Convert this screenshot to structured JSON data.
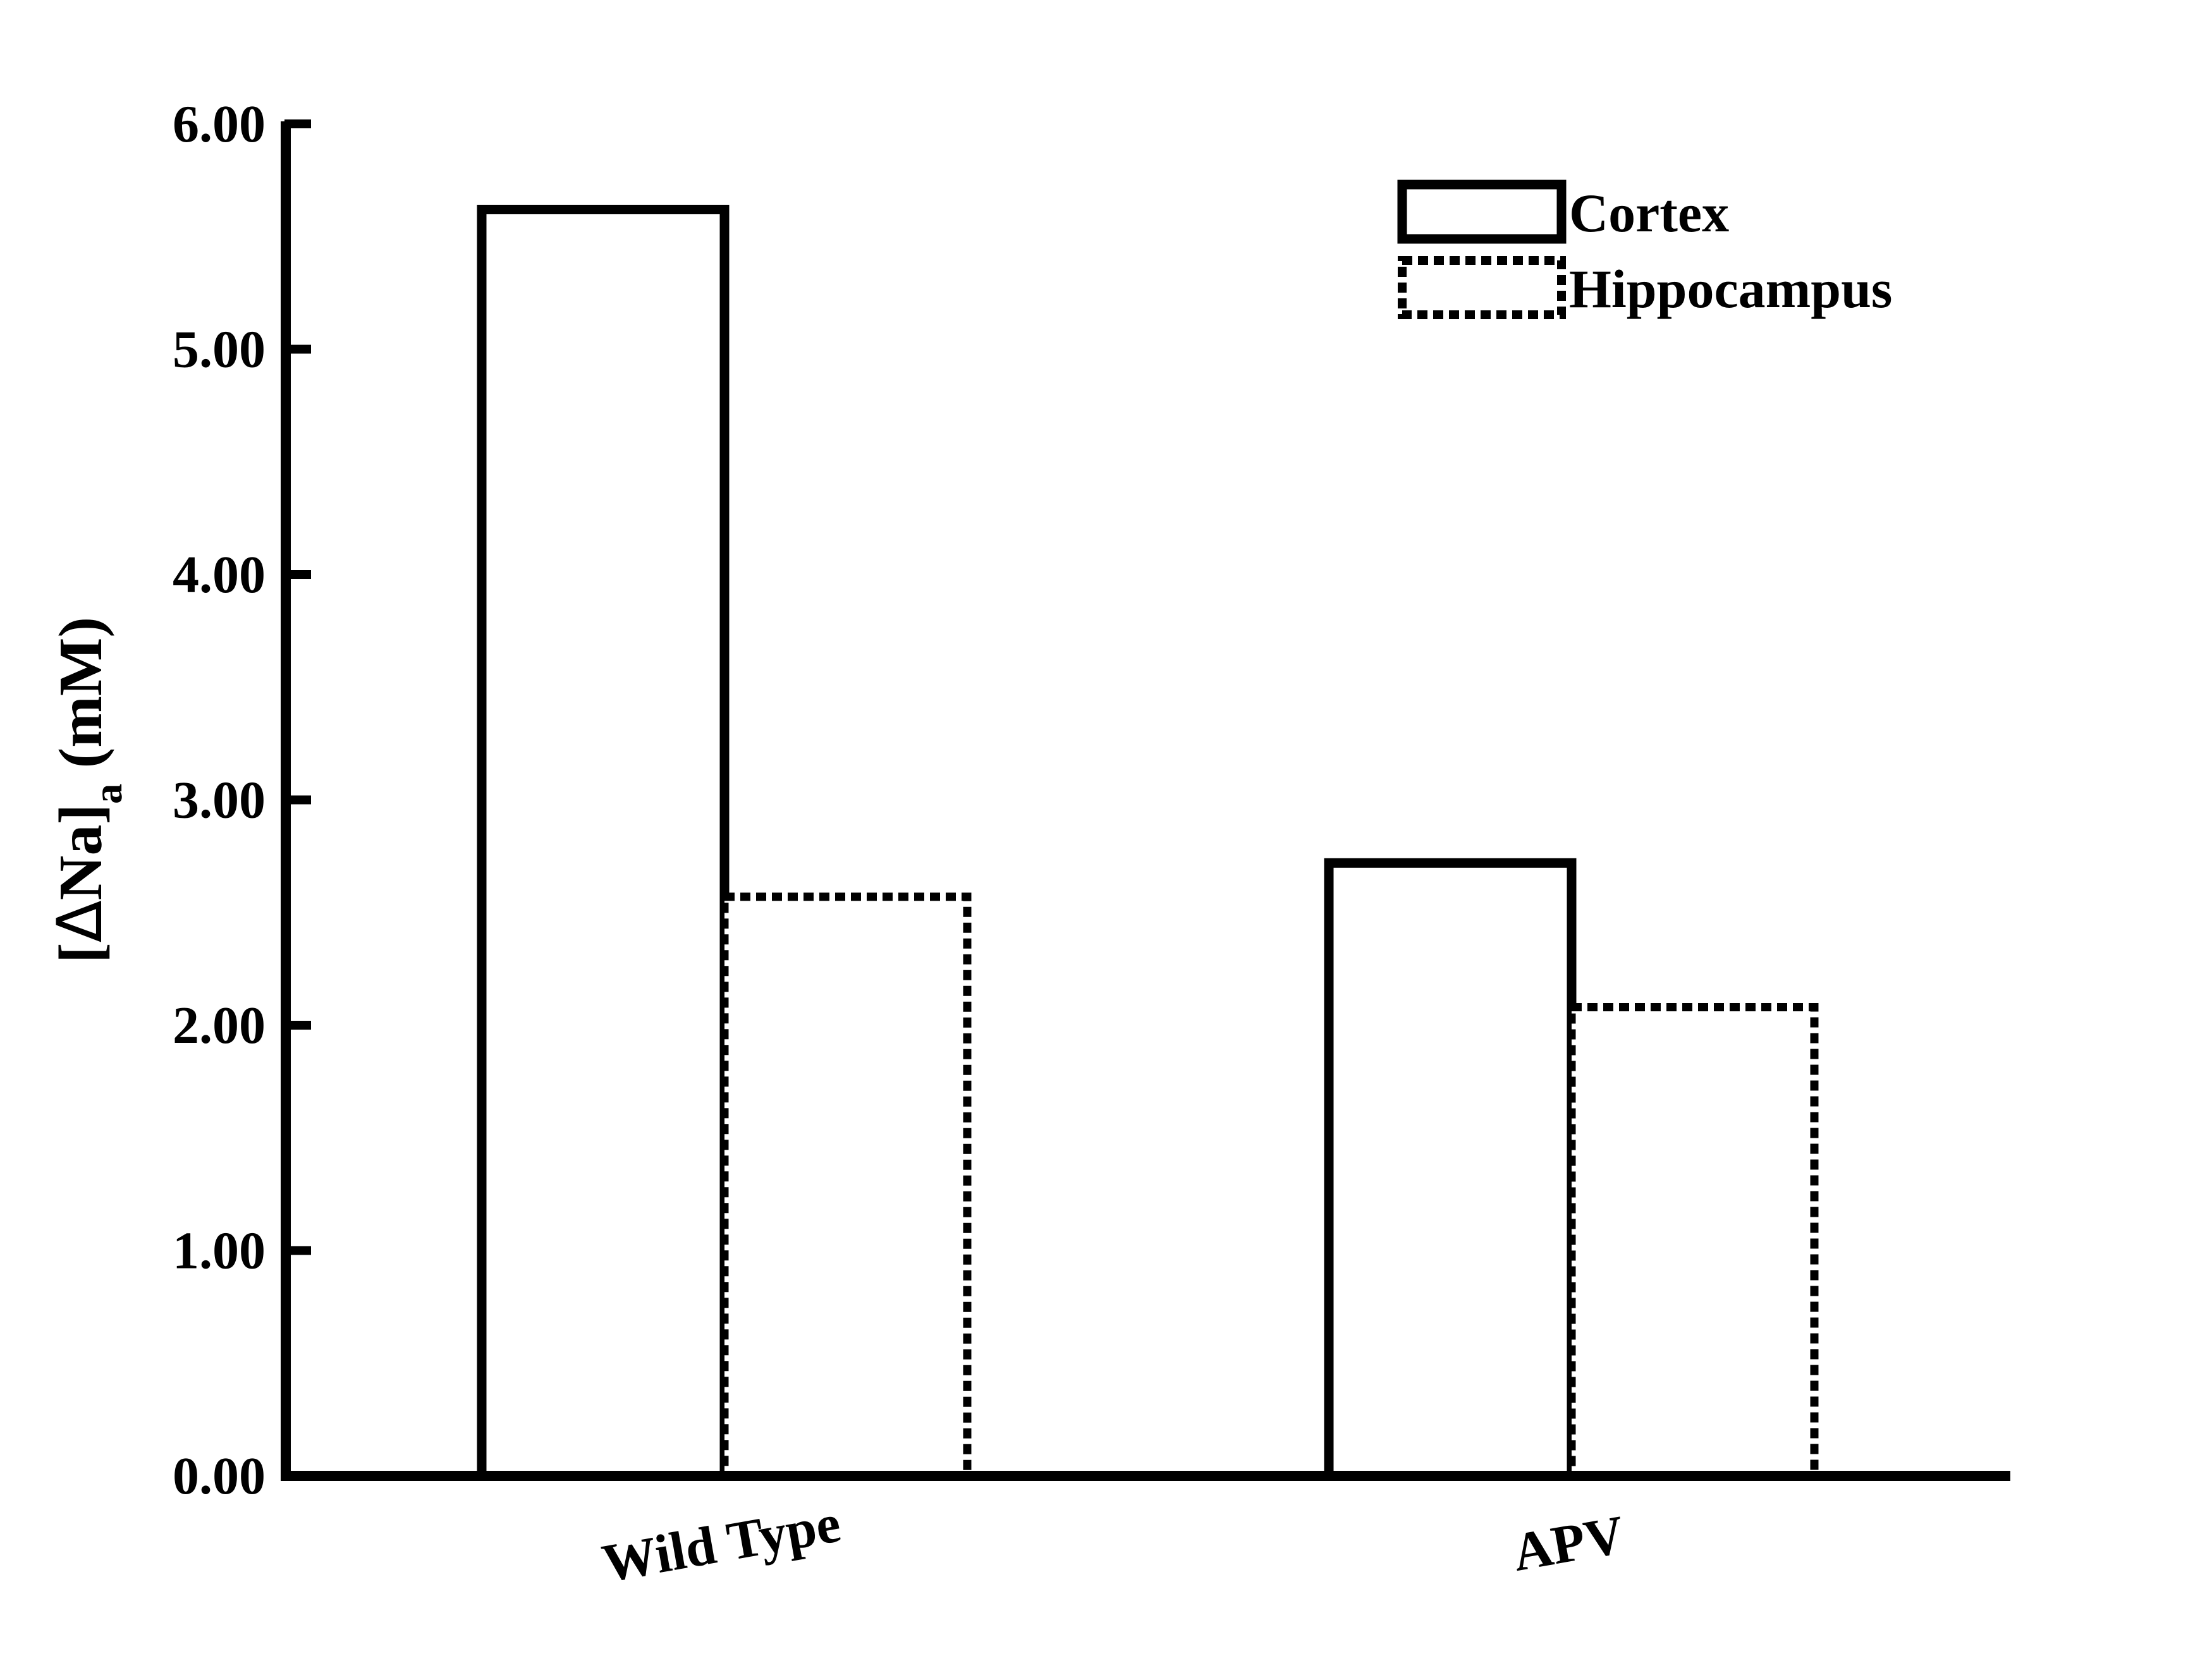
{
  "chart_data": {
    "type": "bar",
    "categories": [
      "Wild Type",
      "APV"
    ],
    "series": [
      {
        "name": "Cortex",
        "values": [
          5.62,
          2.72
        ],
        "style": "solid"
      },
      {
        "name": "Hippocampus",
        "values": [
          2.57,
          2.08
        ],
        "style": "dotted"
      }
    ],
    "ylabel": {
      "open": "[",
      "delta": "Δ",
      "ion": "Na]",
      "sub": "a",
      "unit": " (mM)"
    },
    "ylim": [
      0,
      6
    ],
    "yticks": [
      "0.00",
      "1.00",
      "2.00",
      "3.00",
      "4.00",
      "5.00",
      "6.00"
    ],
    "legend_position": "top-right",
    "grid": false,
    "colors": {
      "stroke": "#000000",
      "fill": "#ffffff"
    }
  }
}
